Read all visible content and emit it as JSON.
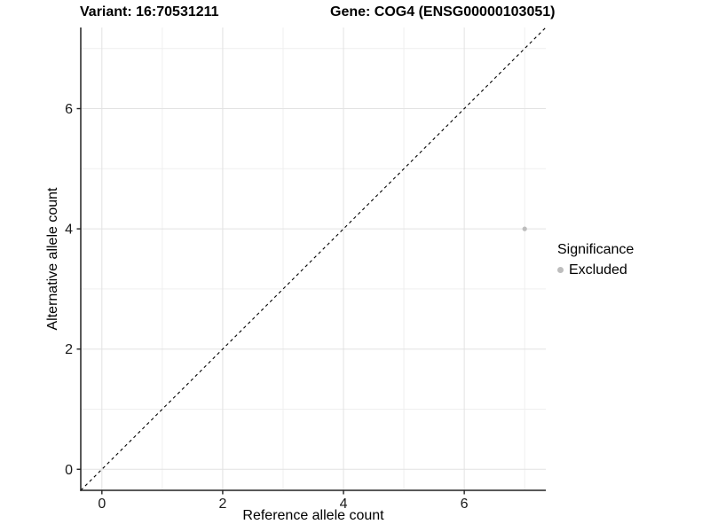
{
  "titles": {
    "variant": "Variant: 16:70531211",
    "gene": "Gene: COG4 (ENSG00000103051)"
  },
  "axes": {
    "x_label": "Reference allele count",
    "y_label": "Alternative allele count"
  },
  "legend": {
    "title": "Significance",
    "items": [
      {
        "label": "Excluded",
        "color": "#bdbdbd"
      }
    ]
  },
  "chart_data": {
    "type": "scatter",
    "title": "Variant: 16:70531211 | Gene: COG4 (ENSG00000103051)",
    "xlabel": "Reference allele count",
    "ylabel": "Alternative allele count",
    "xlim": [
      -0.35,
      7.35
    ],
    "ylim": [
      -0.35,
      7.35
    ],
    "x_ticks": [
      0,
      2,
      4,
      6
    ],
    "y_ticks": [
      0,
      2,
      4,
      6
    ],
    "grid": "on",
    "grid_minor": "on",
    "legend_position": "right",
    "points": [
      {
        "x": 7,
        "y": 4,
        "series": "Excluded"
      }
    ],
    "reference_line": {
      "type": "identity",
      "style": "dashed",
      "color": "#000000"
    },
    "colors": {
      "excluded": "#bdbdbd",
      "grid_major": "#e2e2e2",
      "grid_minor": "#efefef",
      "axis": "#222222",
      "tick_text": "#1a1a1a"
    }
  }
}
